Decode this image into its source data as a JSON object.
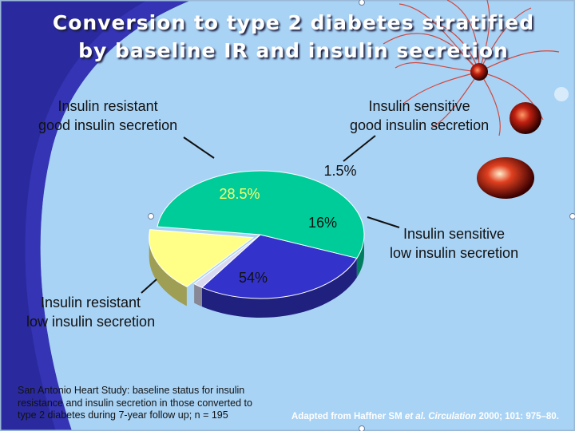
{
  "slide": {
    "title_line1": "Conversion to type 2 diabetes stratified",
    "title_line2": "by baseline IR and insulin secretion",
    "footnote": [
      "San Antonio Heart Study: baseline status for insulin",
      "resistance and insulin secretion in those converted to",
      "type 2 diabetes during 7-year follow up; n = 195"
    ],
    "source": {
      "prefix": "Adapted from Haffner SM ",
      "italic": "et al. Circulation",
      "suffix": " 2000; 101: 975–80."
    }
  },
  "chart_data": {
    "type": "pie",
    "slices": [
      {
        "label_line1": "Insulin resistant",
        "label_line2": "good insulin secretion",
        "value": 28.5,
        "value_label": "28.5%",
        "color": "#3333cc",
        "pct_color": "#ffff66"
      },
      {
        "label_line1": "Insulin sensitive",
        "label_line2": "good insulin secretion",
        "value": 1.5,
        "value_label": "1.5%",
        "color": "#d9d9f2",
        "pct_color": "#111111"
      },
      {
        "label_line1": "Insulin sensitive",
        "label_line2": "low insulin secretion",
        "value": 16,
        "value_label": "16%",
        "color": "#ffff88",
        "pct_color": "#111111"
      },
      {
        "label_line1": "Insulin resistant",
        "label_line2": "low insulin secretion",
        "value": 54,
        "value_label": "54%",
        "color": "#00cc99",
        "pct_color": "#111111"
      }
    ]
  }
}
